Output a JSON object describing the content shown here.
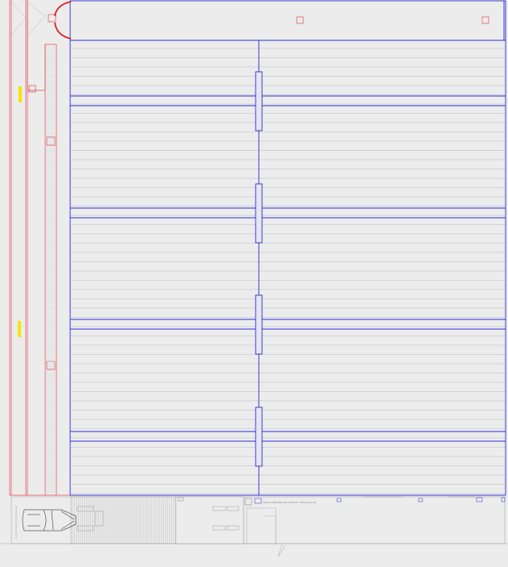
{
  "drawing": {
    "kind": "architectural floor plan (CAD)",
    "background": "#ececec",
    "colors": {
      "structure": "#2b2bd6",
      "wall": "#e0484d",
      "door": "#e02020",
      "marker": "#f2e600",
      "hatch": "#b9b9c6",
      "detail": "#8f8f8f"
    },
    "icons": [
      "door-swing-icon",
      "vehicle-icon",
      "column-marker-icon"
    ],
    "note_text": "AREA CABECERA DE MUELLE / REGULACION"
  },
  "plan": {
    "bay_count": 4,
    "panel_rows_per_bay": 12,
    "sensor_markers": 2,
    "vehicles": 1
  }
}
